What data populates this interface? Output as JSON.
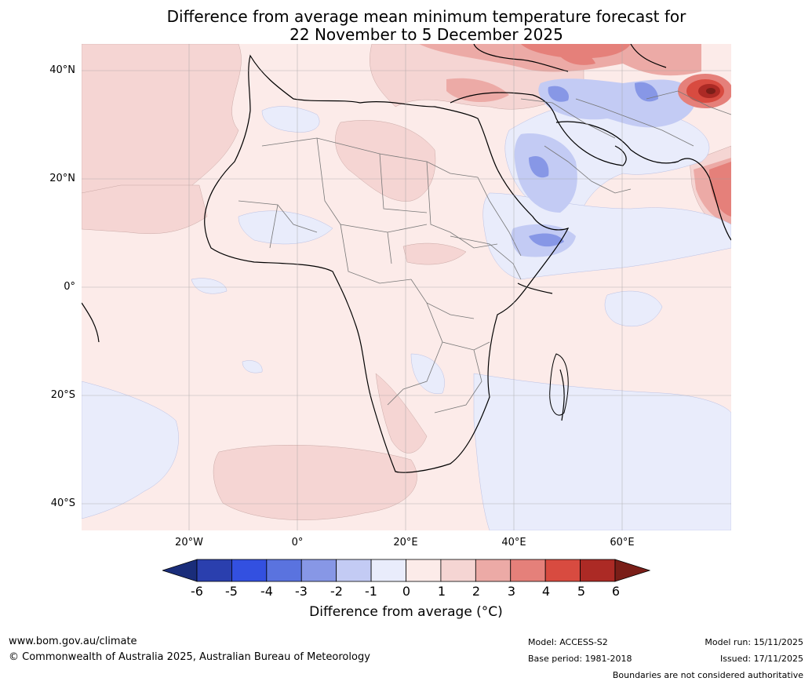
{
  "title": {
    "line1": "Difference from average mean minimum temperature forecast for",
    "line2": "22 November to 5 December 2025"
  },
  "axes": {
    "lat_labels": [
      "40°N",
      "20°N",
      "0°",
      "20°S",
      "40°S"
    ],
    "lon_labels": [
      "20°W",
      "0°",
      "20°E",
      "40°E",
      "60°E"
    ]
  },
  "colorbar": {
    "ticks": [
      "-6",
      "-5",
      "-4",
      "-3",
      "-2",
      "-1",
      "0",
      "1",
      "2",
      "3",
      "4",
      "5",
      "6"
    ],
    "colors": [
      "#1a2d7a",
      "#2a3fae",
      "#3350e0",
      "#5a73df",
      "#8797e6",
      "#c3cbf4",
      "#e9ecfb",
      "#fcebe9",
      "#f5d5d3",
      "#ecaaa6",
      "#e5807a",
      "#d84b40",
      "#ac2a25",
      "#7a1e18"
    ],
    "label": "Difference from average (°C)"
  },
  "footer": {
    "website": "www.bom.gov.au/climate",
    "copyright": "© Commonwealth of Australia 2025, Australian Bureau of Meteorology",
    "model": "Model: ACCESS-S2",
    "base_period": "Base period: 1981-2018",
    "model_run": "Model run: 15/11/2025",
    "issued": "Issued: 17/11/2025",
    "disclaimer": "Boundaries are not considered authoritative"
  }
}
